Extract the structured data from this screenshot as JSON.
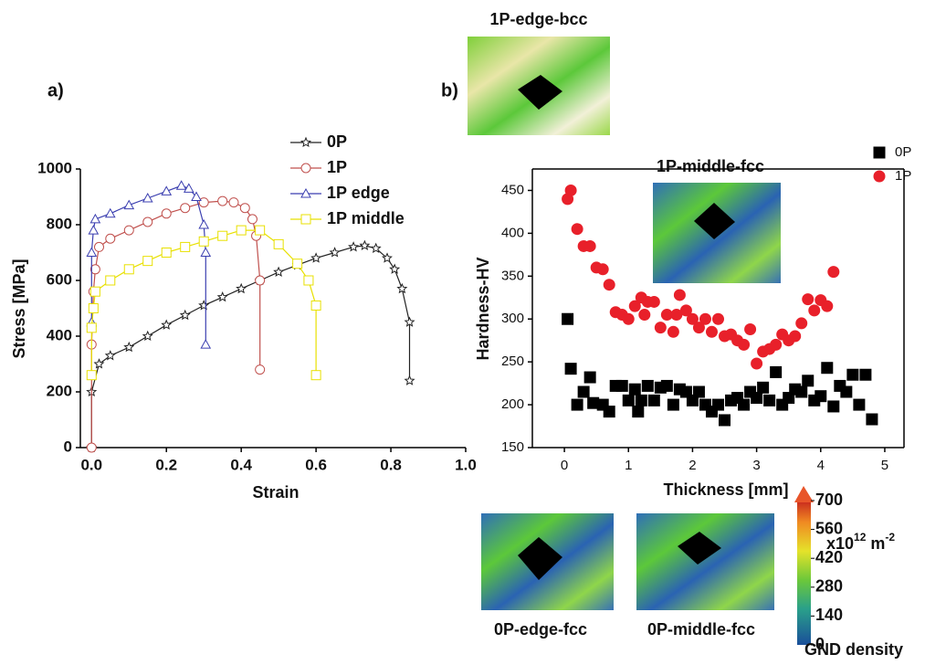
{
  "chart_data": [
    {
      "type": "line",
      "panel": "a)",
      "xlabel": "Strain",
      "ylabel": "Stress [MPa]",
      "xlim": [
        -0.03,
        1.0
      ],
      "ylim": [
        0,
        1000
      ],
      "xticks": [
        {
          "value": 0,
          "label": "0.0"
        },
        0.2,
        0.4,
        0.6,
        0.8,
        {
          "value": 1,
          "label": "1.0"
        }
      ],
      "yticks": [
        0,
        200,
        400,
        600,
        800,
        1000
      ],
      "series": [
        {
          "name": "0P",
          "color": "#222222",
          "marker": "star",
          "x": [
            0,
            0,
            0.02,
            0.05,
            0.1,
            0.15,
            0.2,
            0.25,
            0.3,
            0.35,
            0.4,
            0.45,
            0.5,
            0.55,
            0.6,
            0.65,
            0.7,
            0.73,
            0.76,
            0.79,
            0.81,
            0.83,
            0.85,
            0.85
          ],
          "values": [
            0,
            200,
            300,
            330,
            360,
            400,
            440,
            475,
            510,
            540,
            570,
            600,
            630,
            655,
            680,
            700,
            720,
            725,
            715,
            680,
            640,
            570,
            450,
            240
          ]
        },
        {
          "name": "1P",
          "color": "#c0504d",
          "marker": "circle",
          "x": [
            0,
            0,
            0.005,
            0.01,
            0.02,
            0.05,
            0.1,
            0.15,
            0.2,
            0.25,
            0.3,
            0.35,
            0.38,
            0.41,
            0.43,
            0.44,
            0.45,
            0.45
          ],
          "values": [
            0,
            370,
            560,
            640,
            720,
            750,
            780,
            810,
            840,
            860,
            880,
            885,
            880,
            860,
            820,
            760,
            600,
            280
          ]
        },
        {
          "name": "1P edge",
          "color": "#3b3fb0",
          "marker": "triangle",
          "x": [
            0,
            0,
            0.005,
            0.01,
            0.05,
            0.1,
            0.15,
            0.2,
            0.24,
            0.26,
            0.28,
            0.3,
            0.305,
            0.305
          ],
          "values": [
            450,
            700,
            780,
            820,
            840,
            870,
            895,
            920,
            940,
            930,
            900,
            800,
            700,
            370
          ]
        },
        {
          "name": "1P middle",
          "color": "#e8e000",
          "marker": "square",
          "x": [
            0,
            0,
            0.005,
            0.01,
            0.05,
            0.1,
            0.15,
            0.2,
            0.25,
            0.3,
            0.35,
            0.4,
            0.45,
            0.5,
            0.55,
            0.58,
            0.6,
            0.6
          ],
          "values": [
            260,
            430,
            500,
            560,
            600,
            640,
            670,
            700,
            720,
            740,
            760,
            780,
            780,
            730,
            660,
            600,
            510,
            260
          ]
        }
      ]
    },
    {
      "type": "scatter",
      "panel": "b)",
      "xlabel": "Thickness [mm]",
      "ylabel": "Hardness-HV",
      "xlim": [
        -0.5,
        5.3
      ],
      "ylim": [
        150,
        475
      ],
      "xticks": [
        0,
        1,
        2,
        3,
        4,
        5
      ],
      "yticks": [
        150,
        200,
        250,
        300,
        350,
        400,
        450
      ],
      "series": [
        {
          "name": "0P",
          "color": "#000000",
          "marker": "square",
          "x": [
            0.05,
            0.1,
            0.2,
            0.3,
            0.4,
            0.45,
            0.6,
            0.7,
            0.8,
            0.9,
            1.0,
            1.1,
            1.15,
            1.2,
            1.3,
            1.4,
            1.5,
            1.6,
            1.7,
            1.8,
            1.9,
            2.0,
            2.1,
            2.2,
            2.3,
            2.4,
            2.5,
            2.6,
            2.7,
            2.8,
            2.9,
            3.0,
            3.1,
            3.2,
            3.3,
            3.4,
            3.5,
            3.6,
            3.7,
            3.8,
            3.9,
            4.0,
            4.1,
            4.2,
            4.3,
            4.4,
            4.5,
            4.6,
            4.7,
            4.8
          ],
          "values": [
            300,
            242,
            200,
            215,
            232,
            202,
            200,
            192,
            222,
            222,
            205,
            218,
            192,
            205,
            222,
            205,
            220,
            222,
            200,
            218,
            215,
            205,
            215,
            200,
            192,
            200,
            182,
            205,
            208,
            200,
            215,
            208,
            220,
            205,
            238,
            200,
            208,
            218,
            215,
            228,
            205,
            210,
            243,
            198,
            222,
            215,
            235,
            200,
            235,
            183
          ]
        },
        {
          "name": "1P",
          "color": "#e8202a",
          "marker": "circle",
          "x": [
            0.05,
            0.1,
            0.2,
            0.3,
            0.4,
            0.5,
            0.6,
            0.7,
            0.8,
            0.9,
            1.0,
            1.1,
            1.2,
            1.25,
            1.3,
            1.4,
            1.5,
            1.6,
            1.7,
            1.75,
            1.8,
            1.9,
            2.0,
            2.1,
            2.2,
            2.3,
            2.4,
            2.5,
            2.6,
            2.7,
            2.8,
            2.9,
            3.0,
            3.1,
            3.2,
            3.3,
            3.4,
            3.5,
            3.6,
            3.7,
            3.8,
            3.9,
            4.0,
            4.1,
            4.2
          ],
          "values": [
            440,
            450,
            405,
            385,
            385,
            360,
            358,
            340,
            308,
            305,
            300,
            315,
            325,
            305,
            320,
            320,
            290,
            305,
            285,
            305,
            328,
            310,
            300,
            290,
            300,
            285,
            300,
            280,
            282,
            275,
            270,
            288,
            248,
            262,
            265,
            270,
            282,
            275,
            280,
            295,
            323,
            310,
            322,
            315,
            355
          ]
        }
      ]
    }
  ],
  "images": [
    {
      "label": "1P-edge-bcc"
    },
    {
      "label": "1P-middle-fcc"
    },
    {
      "label": "0P-edge-fcc"
    },
    {
      "label": "0P-middle-fcc"
    }
  ],
  "colorbar": {
    "title": "GND density",
    "lim": [
      0,
      700
    ],
    "ticks": [
      0,
      140,
      280,
      420,
      560,
      700
    ],
    "unit": [
      "x10",
      "12",
      " m",
      "-2"
    ]
  }
}
